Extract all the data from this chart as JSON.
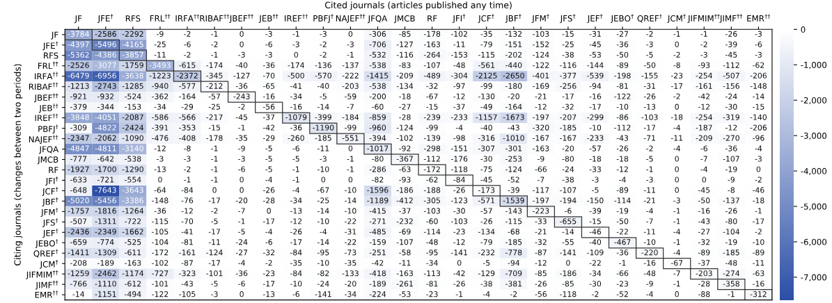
{
  "chart_data": {
    "type": "heatmap",
    "xlabel": "Cited journals (articles published any time)",
    "ylabel": "Citing journals (changes between two periods)",
    "categories": [
      "JF",
      "JFE$^{†}$",
      "RFS",
      "FRL$^{††}$",
      "IRFA$^{††}$",
      "RIBAF$^{††}$",
      "JBEF$^{††}$",
      "JEB$^{††}$",
      "IREF$^{††}$",
      "PBFJ$^{†}$",
      "NAJEF$^{††}$",
      "JFQA",
      "JMCB",
      "RF",
      "JFI$^{†}$",
      "JCF$^{†}$",
      "JBF$^{†}$",
      "JFM$^{†}$",
      "JFS$^{†}$",
      "JEF$^{†}$",
      "JEBO$^{†}$",
      "QREF$^{†}$",
      "JCM$^{†}$",
      "JIFMIM$^{††}$",
      "JIMF$^{††}$",
      "EMR$^{††}$"
    ],
    "y_categories": [
      "JF",
      "JFE$^{†}$",
      "RFS",
      "FRL$^{††}$",
      "IRFA$^{††}$",
      "RIBAF$^{††}$",
      "JBEF$^{††}$",
      "JEB$^{††}$",
      "IREF$^{††}$",
      "PBFJ$^{†}$",
      "NAJEF$^{††}$",
      "JFQA",
      "JMCB",
      "RF",
      "JFI$^{†}$",
      "JCF$^{†}$",
      "JBF$^{†}$",
      "JFM$^{†}$",
      "JFS$^{†}$",
      "JEF$^{†}$",
      "JEBO$^{†}$",
      "QREF$^{†}$",
      "JCM$^{†}$",
      "JIFMIM$^{††}$",
      "JIMF$^{††}$",
      "EMR$^{††}$"
    ],
    "cells": [
      [
        -3784,
        -2586,
        -2292,
        -9,
        -2,
        -1,
        0,
        -3,
        -1,
        -3,
        0,
        -306,
        -85,
        -178,
        -102,
        -35,
        -132,
        -103,
        -15,
        -31,
        -27,
        -2,
        -1,
        -1,
        -26,
        -3
      ],
      [
        -4397,
        -5496,
        -4165,
        -25,
        -6,
        -2,
        0,
        -6,
        -3,
        -2,
        -3,
        -706,
        -127,
        -163,
        -11,
        -79,
        -151,
        -152,
        -25,
        -45,
        -36,
        -3,
        0,
        -2,
        -39,
        -6
      ],
      [
        -5362,
        -4386,
        -3857,
        -11,
        -2,
        -1,
        -3,
        -3,
        0,
        -2,
        -1,
        -532,
        -116,
        -264,
        -153,
        -115,
        -202,
        -124,
        -38,
        -53,
        -50,
        -5,
        -2,
        -3,
        -45,
        -3
      ],
      [
        -2526,
        -3077,
        -1759,
        -3493,
        -615,
        -174,
        -40,
        -36,
        -174,
        -136,
        -137,
        -538,
        -83,
        -107,
        -48,
        -561,
        -440,
        -122,
        -116,
        -144,
        -89,
        -50,
        -8,
        -93,
        -112,
        -62
      ],
      [
        -6479,
        -6956,
        -3638,
        -1223,
        -2372,
        -345,
        -127,
        -70,
        -500,
        -570,
        -222,
        -1415,
        -209,
        -489,
        -304,
        -2125,
        -2650,
        -401,
        -377,
        -539,
        -198,
        -155,
        -23,
        -254,
        -507,
        -206
      ],
      [
        -1213,
        -2743,
        -1285,
        -940,
        -577,
        -212,
        -36,
        -65,
        -41,
        -40,
        -203,
        -538,
        -134,
        -32,
        -97,
        -99,
        -180,
        -169,
        -256,
        -94,
        -81,
        -31,
        -17,
        -161,
        -156,
        -148
      ],
      [
        -921,
        -932,
        -524,
        -362,
        -164,
        -57,
        -243,
        -16,
        -34,
        -5,
        -59,
        -200,
        -18,
        -67,
        -12,
        -130,
        -20,
        -21,
        -17,
        -16,
        -122,
        -26,
        -2,
        -42,
        -24,
        -14
      ],
      [
        -379,
        -344,
        -153,
        -34,
        -29,
        -25,
        -2,
        -56,
        -16,
        -14,
        -7,
        -60,
        -27,
        -15,
        -37,
        -49,
        -164,
        -12,
        -32,
        -17,
        -10,
        -13,
        0,
        -12,
        -30,
        -15
      ],
      [
        -3848,
        -4051,
        -2087,
        -586,
        -566,
        -217,
        -45,
        -37,
        -1079,
        -399,
        -184,
        -859,
        -28,
        -239,
        -233,
        -1157,
        -1673,
        -197,
        -207,
        -299,
        -86,
        -103,
        -18,
        -254,
        -319,
        -140
      ],
      [
        -309,
        -4822,
        -2424,
        -391,
        -353,
        -15,
        -1,
        -42,
        -36,
        -1190,
        -99,
        -960,
        -124,
        -99,
        -4,
        -40,
        -43,
        -320,
        -185,
        -10,
        -112,
        -17,
        -4,
        -187,
        -12,
        -206
      ],
      [
        -2347,
        -2062,
        -1090,
        -476,
        -408,
        -178,
        -35,
        -29,
        -260,
        -185,
        -551,
        -394,
        -102,
        -139,
        -98,
        -316,
        -1010,
        -167,
        -167,
        -233,
        -43,
        -71,
        -11,
        -209,
        -270,
        -96
      ],
      [
        -4847,
        -4811,
        -3140,
        -12,
        -8,
        -1,
        -9,
        -5,
        -6,
        -11,
        0,
        -1017,
        -92,
        -298,
        -151,
        -307,
        -301,
        -163,
        -20,
        -57,
        -26,
        -2,
        -4,
        -6,
        -36,
        -4
      ],
      [
        -777,
        -642,
        -538,
        -3,
        -3,
        -1,
        -3,
        -5,
        -5,
        -3,
        -1,
        -80,
        -367,
        -112,
        -176,
        -30,
        -253,
        -9,
        -80,
        -18,
        -18,
        -5,
        0,
        -7,
        -107,
        -3
      ],
      [
        -1927,
        -1700,
        -1290,
        -13,
        -2,
        -1,
        -6,
        -5,
        -1,
        -10,
        -1,
        -286,
        -63,
        -172,
        -118,
        -75,
        -124,
        -66,
        -24,
        -33,
        -12,
        -1,
        0,
        -4,
        -19,
        0
      ],
      [
        -633,
        -721,
        -554,
        0,
        -1,
        -1,
        0,
        -4,
        -1,
        0,
        0,
        -82,
        -93,
        -62,
        -84,
        -45,
        -52,
        -7,
        -38,
        -3,
        -4,
        -3,
        0,
        0,
        -9,
        -2
      ],
      [
        -648,
        -7643,
        -3643,
        -64,
        -84,
        0,
        0,
        -26,
        -4,
        -67,
        -10,
        -1596,
        -186,
        -188,
        -26,
        -173,
        -39,
        -117,
        -107,
        -5,
        -89,
        -11,
        0,
        -45,
        -8,
        -46
      ],
      [
        -5020,
        -5456,
        -3386,
        -148,
        -76,
        -17,
        -20,
        -28,
        -34,
        -25,
        -14,
        -1189,
        -412,
        -305,
        -123,
        -571,
        -1539,
        -197,
        -194,
        -150,
        -114,
        -21,
        -3,
        -50,
        -137,
        -18
      ],
      [
        -1757,
        -1816,
        -1264,
        -36,
        -12,
        -2,
        -7,
        0,
        -13,
        -14,
        -10,
        -415,
        -37,
        -103,
        -30,
        -57,
        -143,
        -223,
        -6,
        -39,
        -19,
        -4,
        -1,
        -16,
        -26,
        -1
      ],
      [
        -507,
        -1311,
        -722,
        -115,
        -70,
        -5,
        -1,
        -17,
        -12,
        -10,
        -22,
        -271,
        -232,
        -60,
        -103,
        -26,
        -115,
        -33,
        -655,
        -15,
        -50,
        -7,
        -1,
        -43,
        -80,
        -17
      ],
      [
        -2436,
        -2349,
        -1662,
        -105,
        -41,
        -17,
        -5,
        -4,
        -26,
        -4,
        -31,
        -485,
        -69,
        -114,
        -23,
        -134,
        -68,
        -21,
        -14,
        -46,
        -22,
        -11,
        -4,
        -27,
        -104,
        -2
      ],
      [
        -659,
        -774,
        -525,
        -104,
        -81,
        -11,
        -24,
        -6,
        -17,
        -14,
        -22,
        -159,
        -107,
        -48,
        -12,
        -79,
        -185,
        -32,
        -55,
        -40,
        -467,
        -10,
        -1,
        -32,
        -19,
        -10
      ],
      [
        -1411,
        -1309,
        -611,
        -172,
        -161,
        -124,
        -27,
        -32,
        -84,
        -95,
        -73,
        -251,
        -58,
        -95,
        -141,
        -232,
        -778,
        -87,
        -141,
        -109,
        -36,
        -220,
        -4,
        -89,
        -185,
        -89
      ],
      [
        -208,
        -189,
        -163,
        -102,
        -87,
        -17,
        -4,
        -2,
        -35,
        -10,
        -35,
        -42,
        -11,
        -34,
        0,
        -5,
        -94,
        -12,
        0,
        -22,
        -1,
        -16,
        -67,
        -37,
        -48,
        -11
      ],
      [
        -1259,
        -2462,
        -1174,
        -727,
        -323,
        -101,
        -36,
        -23,
        -84,
        -82,
        -133,
        -418,
        -163,
        -113,
        -42,
        -129,
        -709,
        -85,
        -186,
        -34,
        -66,
        -48,
        -7,
        -203,
        -274,
        -63
      ],
      [
        -766,
        -1110,
        -612,
        -101,
        -43,
        -5,
        -6,
        -17,
        -10,
        -24,
        -20,
        -189,
        -261,
        -81,
        -26,
        -38,
        -381,
        -26,
        -85,
        -30,
        -23,
        -9,
        -1,
        -28,
        -358,
        -16
      ],
      [
        -14,
        -1151,
        -494,
        -122,
        -105,
        -3,
        0,
        -13,
        -6,
        -141,
        -34,
        -224,
        -53,
        -23,
        -1,
        -4,
        -2,
        -56,
        -118,
        -2,
        -52,
        -4,
        0,
        -88,
        -1,
        -312
      ]
    ],
    "data_labels": true,
    "clim": [
      -7643,
      0
    ],
    "cticks": [
      0,
      {
        "value": -1000,
        "label": "-1,000"
      },
      {
        "value": -2000,
        "label": "-2,000"
      },
      {
        "value": -3000,
        "label": "-3,000"
      },
      {
        "value": -4000,
        "label": "-4,000"
      },
      {
        "value": -5000,
        "label": "-5,000"
      },
      {
        "value": -6000,
        "label": "-6,000"
      },
      {
        "value": -7000,
        "label": "-7,000"
      }
    ]
  }
}
